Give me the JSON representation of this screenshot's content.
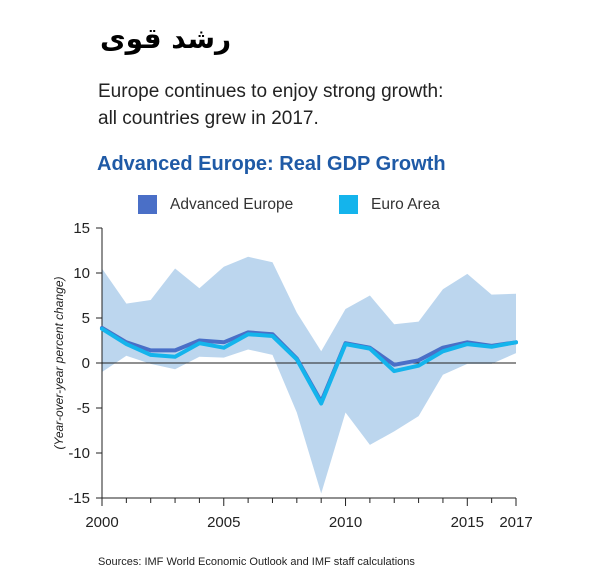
{
  "header": {
    "arabic_title": "رشد قوی",
    "subtitle_line1": "Europe continues to enjoy strong growth:",
    "subtitle_line2": "all countries grew in 2017."
  },
  "footer": {
    "source": "Sources: IMF World Economic Outlook and IMF staff calculations"
  },
  "colors": {
    "advanced_europe": "#4a6fc7",
    "euro_area": "#14b4ec",
    "range_band": "#bcd6ee",
    "title": "#1f5aa6"
  },
  "chart_data": {
    "type": "line",
    "title": "Advanced Europe: Real GDP Growth",
    "xlabel": "",
    "ylabel": "(Year-over-year percent change)",
    "ylim": [
      -15,
      15
    ],
    "xlim": [
      2000,
      2017
    ],
    "y_ticks": [
      15,
      10,
      5,
      0,
      -5,
      -10,
      -15
    ],
    "y_tick_labels": [
      "15",
      "10",
      "5",
      "0",
      "-5",
      "-10",
      "-15"
    ],
    "x_ticks": [
      2000,
      2005,
      2010,
      2015,
      2017
    ],
    "x_tick_labels": [
      "2000",
      "2005",
      "2010",
      "2015",
      "2017"
    ],
    "legend_position": "top",
    "grid": false,
    "x": [
      2000,
      2001,
      2002,
      2003,
      2004,
      2005,
      2006,
      2007,
      2008,
      2009,
      2010,
      2011,
      2012,
      2013,
      2014,
      2015,
      2016,
      2017
    ],
    "range": {
      "max": [
        10.5,
        6.6,
        7.0,
        10.5,
        8.3,
        10.7,
        11.8,
        11.2,
        5.6,
        1.3,
        6.0,
        7.5,
        4.3,
        4.6,
        8.2,
        9.9,
        7.6,
        7.7
      ],
      "min": [
        -1.0,
        0.8,
        -0.1,
        -0.7,
        0.7,
        0.6,
        1.5,
        0.9,
        -5.5,
        -14.5,
        -5.5,
        -9.1,
        -7.6,
        -5.9,
        -1.3,
        -0.1,
        -0.1,
        1.1
      ]
    },
    "series": [
      {
        "name": "Advanced Europe",
        "values": [
          3.9,
          2.3,
          1.4,
          1.4,
          2.5,
          2.3,
          3.4,
          3.2,
          0.5,
          -4.3,
          2.2,
          1.7,
          -0.2,
          0.3,
          1.7,
          2.3,
          1.9,
          2.3
        ]
      },
      {
        "name": "Euro Area",
        "values": [
          3.8,
          2.1,
          0.9,
          0.7,
          2.2,
          1.7,
          3.2,
          3.0,
          0.4,
          -4.5,
          2.1,
          1.6,
          -0.9,
          -0.3,
          1.3,
          2.1,
          1.8,
          2.3
        ]
      }
    ]
  }
}
